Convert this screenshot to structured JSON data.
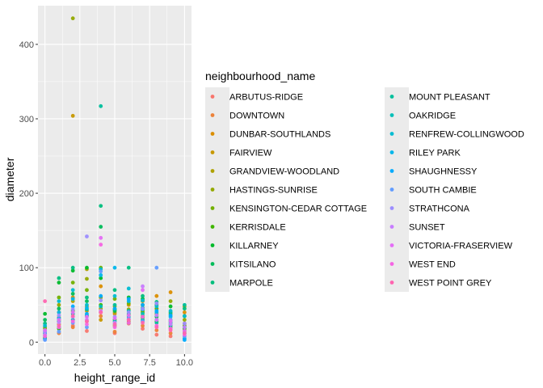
{
  "chart_data": {
    "type": "scatter",
    "title": "",
    "xlabel": "height_range_id",
    "ylabel": "diameter",
    "xlim": [
      -0.5,
      10.5
    ],
    "ylim": [
      -16,
      452
    ],
    "x_ticks": [
      0.0,
      2.5,
      5.0,
      7.5,
      10.0
    ],
    "x_tick_labels": [
      "0.0",
      "2.5",
      "5.0",
      "7.5",
      "10.0"
    ],
    "y_ticks": [
      0,
      100,
      200,
      300,
      400
    ],
    "y_tick_labels": [
      "0",
      "100",
      "200",
      "300",
      "400"
    ],
    "grid": true,
    "legend": {
      "title": "neighbourhood_name",
      "placement": "right",
      "columns": 2
    },
    "series": [
      {
        "name": "ARBUTUS-RIDGE",
        "color": "#F8766D",
        "points": [
          [
            1,
            30
          ],
          [
            2,
            22
          ],
          [
            3,
            15
          ],
          [
            4,
            40
          ],
          [
            5,
            12
          ],
          [
            6,
            25
          ],
          [
            7,
            18
          ],
          [
            8,
            10
          ],
          [
            9,
            8
          ]
        ]
      },
      {
        "name": "DOWNTOWN",
        "color": "#EC8239",
        "points": [
          [
            0,
            6
          ],
          [
            1,
            12
          ],
          [
            2,
            20
          ],
          [
            3,
            28
          ],
          [
            4,
            35
          ],
          [
            5,
            14
          ],
          [
            6,
            30
          ],
          [
            7,
            22
          ],
          [
            8,
            16
          ],
          [
            9,
            12
          ],
          [
            10,
            25
          ]
        ]
      },
      {
        "name": "DUNBAR-SOUTHLANDS",
        "color": "#DB8E00",
        "points": [
          [
            1,
            40
          ],
          [
            2,
            60
          ],
          [
            3,
            48
          ],
          [
            4,
            75
          ],
          [
            5,
            38
          ],
          [
            6,
            50
          ],
          [
            7,
            55
          ],
          [
            8,
            62
          ],
          [
            9,
            67
          ],
          [
            10,
            40
          ]
        ]
      },
      {
        "name": "FAIRVIEW",
        "color": "#C79800",
        "points": [
          [
            0,
            10
          ],
          [
            1,
            24
          ],
          [
            2,
            304
          ],
          [
            3,
            42
          ],
          [
            4,
            30
          ],
          [
            5,
            22
          ],
          [
            6,
            28
          ],
          [
            7,
            35
          ],
          [
            8,
            45
          ],
          [
            9,
            20
          ],
          [
            10,
            15
          ]
        ]
      },
      {
        "name": "GRANDVIEW-WOODLAND",
        "color": "#AFA100",
        "points": [
          [
            0,
            12
          ],
          [
            1,
            33
          ],
          [
            2,
            55
          ],
          [
            3,
            98
          ],
          [
            4,
            45
          ],
          [
            5,
            40
          ],
          [
            6,
            36
          ],
          [
            7,
            50
          ],
          [
            8,
            38
          ],
          [
            9,
            30
          ],
          [
            10,
            48
          ]
        ]
      },
      {
        "name": "HASTINGS-SUNRISE",
        "color": "#94A900",
        "points": [
          [
            0,
            18
          ],
          [
            1,
            50
          ],
          [
            2,
            435
          ],
          [
            3,
            85
          ],
          [
            4,
            60
          ],
          [
            5,
            48
          ],
          [
            6,
            44
          ],
          [
            7,
            42
          ],
          [
            8,
            36
          ],
          [
            9,
            55
          ],
          [
            10,
            30
          ]
        ]
      },
      {
        "name": "KENSINGTON-CEDAR COTTAGE",
        "color": "#72B000",
        "points": [
          [
            0,
            20
          ],
          [
            1,
            60
          ],
          [
            2,
            80
          ],
          [
            3,
            70
          ],
          [
            4,
            100
          ],
          [
            5,
            58
          ],
          [
            6,
            52
          ],
          [
            7,
            40
          ],
          [
            8,
            45
          ],
          [
            9,
            38
          ],
          [
            10,
            22
          ]
        ]
      },
      {
        "name": "KERRISDALE",
        "color": "#3FB500",
        "points": [
          [
            0,
            5
          ],
          [
            1,
            18
          ],
          [
            2,
            42
          ],
          [
            3,
            35
          ],
          [
            4,
            50
          ],
          [
            5,
            30
          ],
          [
            6,
            26
          ],
          [
            7,
            33
          ],
          [
            8,
            28
          ],
          [
            9,
            24
          ],
          [
            10,
            18
          ]
        ]
      },
      {
        "name": "KILLARNEY",
        "color": "#00B92A",
        "points": [
          [
            0,
            38
          ],
          [
            1,
            80
          ],
          [
            2,
            96
          ],
          [
            3,
            100
          ],
          [
            4,
            86
          ],
          [
            5,
            44
          ],
          [
            6,
            60
          ],
          [
            7,
            58
          ],
          [
            8,
            50
          ],
          [
            9,
            48
          ],
          [
            10,
            35
          ]
        ]
      },
      {
        "name": "KITSILANO",
        "color": "#00BC59",
        "points": [
          [
            0,
            30
          ],
          [
            1,
            45
          ],
          [
            2,
            65
          ],
          [
            3,
            55
          ],
          [
            4,
            155
          ],
          [
            5,
            42
          ],
          [
            6,
            38
          ],
          [
            7,
            46
          ],
          [
            8,
            34
          ],
          [
            9,
            28
          ],
          [
            10,
            20
          ]
        ]
      },
      {
        "name": "MARPOLE",
        "color": "#00BE7D",
        "points": [
          [
            0,
            25
          ],
          [
            1,
            86
          ],
          [
            2,
            100
          ],
          [
            3,
            60
          ],
          [
            4,
            183
          ],
          [
            5,
            70
          ],
          [
            6,
            100
          ],
          [
            7,
            62
          ],
          [
            8,
            54
          ],
          [
            9,
            40
          ],
          [
            10,
            45
          ]
        ]
      },
      {
        "name": "MOUNT PLEASANT",
        "color": "#00BF9C",
        "points": [
          [
            0,
            15
          ],
          [
            1,
            28
          ],
          [
            2,
            38
          ],
          [
            3,
            44
          ],
          [
            4,
            317
          ],
          [
            5,
            50
          ],
          [
            6,
            34
          ],
          [
            7,
            30
          ],
          [
            8,
            26
          ],
          [
            9,
            22
          ],
          [
            10,
            50
          ]
        ]
      },
      {
        "name": "OAKRIDGE",
        "color": "#00BFB8",
        "points": [
          [
            0,
            8
          ],
          [
            1,
            20
          ],
          [
            2,
            30
          ],
          [
            3,
            36
          ],
          [
            4,
            48
          ],
          [
            5,
            28
          ],
          [
            6,
            42
          ],
          [
            7,
            38
          ],
          [
            8,
            30
          ],
          [
            9,
            26
          ],
          [
            10,
            12
          ]
        ]
      },
      {
        "name": "RENFREW-COLLINGWOOD",
        "color": "#00BCD2",
        "points": [
          [
            0,
            22
          ],
          [
            1,
            55
          ],
          [
            2,
            70
          ],
          [
            3,
            50
          ],
          [
            4,
            98
          ],
          [
            5,
            62
          ],
          [
            6,
            72
          ],
          [
            7,
            56
          ],
          [
            8,
            48
          ],
          [
            9,
            42
          ],
          [
            10,
            35
          ]
        ]
      },
      {
        "name": "RILEY PARK",
        "color": "#00B6EB",
        "points": [
          [
            0,
            12
          ],
          [
            1,
            40
          ],
          [
            2,
            58
          ],
          [
            3,
            46
          ],
          [
            4,
            90
          ],
          [
            5,
            100
          ],
          [
            6,
            55
          ],
          [
            7,
            44
          ],
          [
            8,
            40
          ],
          [
            9,
            34
          ],
          [
            10,
            5
          ]
        ]
      },
      {
        "name": "SHAUGHNESSY",
        "color": "#00ABFD",
        "points": [
          [
            0,
            4
          ],
          [
            1,
            32
          ],
          [
            2,
            48
          ],
          [
            3,
            38
          ],
          [
            4,
            62
          ],
          [
            5,
            45
          ],
          [
            6,
            58
          ],
          [
            7,
            50
          ],
          [
            8,
            42
          ],
          [
            9,
            36
          ],
          [
            10,
            3
          ]
        ]
      },
      {
        "name": "SOUTH CAMBIE",
        "color": "#619CFF",
        "points": [
          [
            0,
            3
          ],
          [
            1,
            14
          ],
          [
            2,
            26
          ],
          [
            3,
            20
          ],
          [
            4,
            95
          ],
          [
            5,
            24
          ],
          [
            6,
            32
          ],
          [
            7,
            28
          ],
          [
            8,
            100
          ],
          [
            9,
            18
          ],
          [
            10,
            8
          ]
        ]
      },
      {
        "name": "STRATHCONA",
        "color": "#9C8DFF",
        "points": [
          [
            0,
            14
          ],
          [
            1,
            36
          ],
          [
            2,
            44
          ],
          [
            3,
            142
          ],
          [
            4,
            56
          ],
          [
            5,
            34
          ],
          [
            6,
            40
          ],
          [
            7,
            45
          ],
          [
            8,
            52
          ],
          [
            9,
            30
          ],
          [
            10,
            25
          ]
        ]
      },
      {
        "name": "SUNSET",
        "color": "#C77CFF",
        "points": [
          [
            0,
            10
          ],
          [
            1,
            26
          ],
          [
            2,
            34
          ],
          [
            3,
            30
          ],
          [
            4,
            42
          ],
          [
            5,
            26
          ],
          [
            6,
            30
          ],
          [
            7,
            75
          ],
          [
            8,
            36
          ],
          [
            9,
            24
          ],
          [
            10,
            20
          ]
        ]
      },
      {
        "name": "VICTORIA-FRASERVIEW",
        "color": "#E46DF6",
        "points": [
          [
            0,
            16
          ],
          [
            1,
            30
          ],
          [
            2,
            40
          ],
          [
            3,
            34
          ],
          [
            4,
            140
          ],
          [
            5,
            32
          ],
          [
            6,
            36
          ],
          [
            7,
            70
          ],
          [
            8,
            30
          ],
          [
            9,
            28
          ],
          [
            10,
            15
          ]
        ]
      },
      {
        "name": "WEST END",
        "color": "#F564E3",
        "points": [
          [
            0,
            8
          ],
          [
            1,
            20
          ],
          [
            2,
            28
          ],
          [
            3,
            24
          ],
          [
            4,
            131
          ],
          [
            5,
            20
          ],
          [
            6,
            26
          ],
          [
            7,
            34
          ],
          [
            8,
            22
          ],
          [
            9,
            18
          ],
          [
            10,
            10
          ]
        ]
      },
      {
        "name": "WEST POINT GREY",
        "color": "#FF64B0",
        "points": [
          [
            0,
            55
          ],
          [
            1,
            22
          ],
          [
            2,
            35
          ],
          [
            3,
            28
          ],
          [
            4,
            40
          ],
          [
            5,
            24
          ],
          [
            6,
            30
          ],
          [
            7,
            26
          ],
          [
            8,
            20
          ],
          [
            9,
            16
          ],
          [
            10,
            12
          ]
        ]
      }
    ]
  }
}
